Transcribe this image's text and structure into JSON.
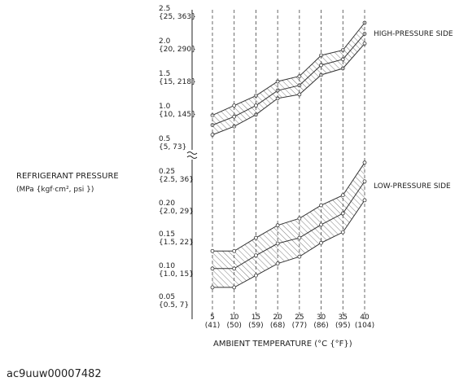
{
  "y_label": "REFRIGERANT PRESSURE",
  "y_label_units": "(MPa {kgf·cm², psi })",
  "x_label": "AMBIENT TEMPERATURE  (°C {°F})",
  "footer": "ac9uuw00007482",
  "chart_data": [
    {
      "type": "line",
      "label": "HIGH-PRESSURE SIDE",
      "x": [
        5,
        10,
        15,
        20,
        25,
        30,
        35,
        40
      ],
      "xlim": [
        5,
        40
      ],
      "ylim": [
        0.5,
        2.5
      ],
      "yticks": [
        {
          "value": 0.5,
          "label": "0.5\n{5, 73}"
        },
        {
          "value": 1.0,
          "label": "1.0\n{10, 145}"
        },
        {
          "value": 1.5,
          "label": "1.5\n{15, 218}"
        },
        {
          "value": 2.0,
          "label": "2.0\n{20, 290}"
        },
        {
          "value": 2.5,
          "label": "2.5\n{25, 363}"
        }
      ],
      "series": [
        {
          "color": "#333333",
          "values": [
            0.88,
            1.03,
            1.18,
            1.4,
            1.48,
            1.8,
            1.88,
            2.3
          ]
        },
        {
          "color": "#333333",
          "values": [
            0.73,
            0.86,
            1.03,
            1.26,
            1.34,
            1.65,
            1.74,
            2.13
          ]
        },
        {
          "color": "#333333",
          "values": [
            0.58,
            0.71,
            0.89,
            1.14,
            1.2,
            1.5,
            1.6,
            1.98
          ]
        }
      ]
    },
    {
      "type": "line",
      "label": "LOW-PRESSURE SIDE",
      "x": [
        5,
        10,
        15,
        20,
        25,
        30,
        35,
        40
      ],
      "xlim": [
        5,
        40
      ],
      "xticks": [
        {
          "value": 5,
          "label": "5\n(41)"
        },
        {
          "value": 10,
          "label": "10\n(50)"
        },
        {
          "value": 15,
          "label": "15\n(59)"
        },
        {
          "value": 20,
          "label": "20\n(68)"
        },
        {
          "value": 25,
          "label": "25\n(77)"
        },
        {
          "value": 30,
          "label": "30\n(86)"
        },
        {
          "value": 35,
          "label": "35\n(95)"
        },
        {
          "value": 40,
          "label": "40\n(104)"
        }
      ],
      "grid": true,
      "ylim": [
        0.05,
        0.25
      ],
      "yticks": [
        {
          "value": 0.05,
          "label": "0.05\n{0.5, 7}"
        },
        {
          "value": 0.1,
          "label": "0.10\n{1.0, 15}"
        },
        {
          "value": 0.15,
          "label": "0.15\n{1.5, 22}"
        },
        {
          "value": 0.2,
          "label": "0.20\n{2.0, 29}"
        },
        {
          "value": 0.25,
          "label": "0.25\n{2.5, 36}"
        }
      ],
      "series": [
        {
          "color": "#333333",
          "values": [
            0.125,
            0.125,
            0.146,
            0.166,
            0.177,
            0.198,
            0.214,
            0.266
          ]
        },
        {
          "color": "#333333",
          "values": [
            0.097,
            0.097,
            0.118,
            0.137,
            0.146,
            0.167,
            0.185,
            0.236
          ]
        },
        {
          "color": "#333333",
          "values": [
            0.067,
            0.067,
            0.086,
            0.105,
            0.116,
            0.138,
            0.155,
            0.206
          ]
        }
      ]
    }
  ]
}
